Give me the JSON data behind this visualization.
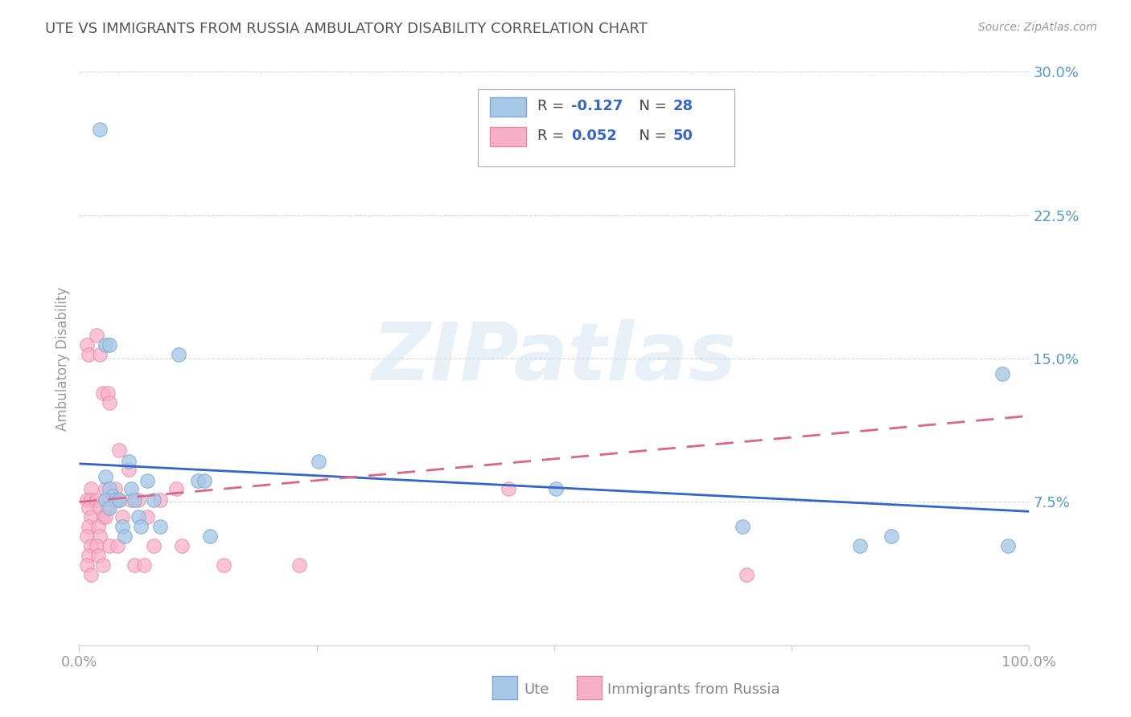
{
  "title": "UTE VS IMMIGRANTS FROM RUSSIA AMBULATORY DISABILITY CORRELATION CHART",
  "source": "Source: ZipAtlas.com",
  "ylabel": "Ambulatory Disability",
  "watermark": "ZIPatlas",
  "xlim": [
    0,
    1.0
  ],
  "ylim": [
    0,
    0.3
  ],
  "yticks": [
    0.075,
    0.15,
    0.225,
    0.3
  ],
  "ytick_labels": [
    "7.5%",
    "15.0%",
    "22.5%",
    "30.0%"
  ],
  "ute_color": "#a8c8e8",
  "russia_color": "#f8b0c8",
  "ute_edge_color": "#7aaad0",
  "russia_edge_color": "#e888a8",
  "ute_line_color": "#3366cc",
  "russia_line_color": "#dd6688",
  "tick_color": "#5599cc",
  "axis_label_color": "#999999",
  "title_color": "#555555",
  "source_color": "#999999",
  "grid_color": "#cccccc",
  "legend_text_color": "#444444",
  "legend_R_color": "#3366cc",
  "bottom_legend_text_color": "#888888",
  "ute_points": [
    [
      0.022,
      0.27
    ],
    [
      0.028,
      0.157
    ],
    [
      0.032,
      0.157
    ],
    [
      0.028,
      0.088
    ],
    [
      0.032,
      0.082
    ],
    [
      0.035,
      0.078
    ],
    [
      0.028,
      0.076
    ],
    [
      0.038,
      0.076
    ],
    [
      0.032,
      0.072
    ],
    [
      0.042,
      0.076
    ],
    [
      0.045,
      0.062
    ],
    [
      0.048,
      0.057
    ],
    [
      0.052,
      0.096
    ],
    [
      0.055,
      0.082
    ],
    [
      0.058,
      0.076
    ],
    [
      0.062,
      0.067
    ],
    [
      0.065,
      0.062
    ],
    [
      0.072,
      0.086
    ],
    [
      0.078,
      0.076
    ],
    [
      0.085,
      0.062
    ],
    [
      0.105,
      0.152
    ],
    [
      0.125,
      0.086
    ],
    [
      0.132,
      0.086
    ],
    [
      0.138,
      0.057
    ],
    [
      0.252,
      0.096
    ],
    [
      0.502,
      0.082
    ],
    [
      0.698,
      0.062
    ],
    [
      0.822,
      0.052
    ],
    [
      0.855,
      0.057
    ],
    [
      0.972,
      0.142
    ],
    [
      0.978,
      0.052
    ]
  ],
  "russia_points": [
    [
      0.008,
      0.157
    ],
    [
      0.01,
      0.152
    ],
    [
      0.012,
      0.082
    ],
    [
      0.008,
      0.076
    ],
    [
      0.012,
      0.076
    ],
    [
      0.01,
      0.072
    ],
    [
      0.012,
      0.067
    ],
    [
      0.01,
      0.062
    ],
    [
      0.008,
      0.057
    ],
    [
      0.012,
      0.052
    ],
    [
      0.01,
      0.047
    ],
    [
      0.008,
      0.042
    ],
    [
      0.012,
      0.037
    ],
    [
      0.018,
      0.162
    ],
    [
      0.022,
      0.152
    ],
    [
      0.025,
      0.132
    ],
    [
      0.018,
      0.076
    ],
    [
      0.022,
      0.072
    ],
    [
      0.025,
      0.067
    ],
    [
      0.02,
      0.062
    ],
    [
      0.022,
      0.057
    ],
    [
      0.018,
      0.052
    ],
    [
      0.02,
      0.047
    ],
    [
      0.025,
      0.042
    ],
    [
      0.03,
      0.132
    ],
    [
      0.032,
      0.127
    ],
    [
      0.028,
      0.082
    ],
    [
      0.032,
      0.076
    ],
    [
      0.03,
      0.072
    ],
    [
      0.028,
      0.067
    ],
    [
      0.032,
      0.052
    ],
    [
      0.042,
      0.102
    ],
    [
      0.038,
      0.082
    ],
    [
      0.042,
      0.076
    ],
    [
      0.045,
      0.067
    ],
    [
      0.04,
      0.052
    ],
    [
      0.052,
      0.092
    ],
    [
      0.055,
      0.076
    ],
    [
      0.058,
      0.042
    ],
    [
      0.062,
      0.076
    ],
    [
      0.068,
      0.042
    ],
    [
      0.072,
      0.067
    ],
    [
      0.078,
      0.052
    ],
    [
      0.085,
      0.076
    ],
    [
      0.102,
      0.082
    ],
    [
      0.108,
      0.052
    ],
    [
      0.152,
      0.042
    ],
    [
      0.232,
      0.042
    ],
    [
      0.452,
      0.082
    ],
    [
      0.702,
      0.037
    ]
  ],
  "background_color": "#ffffff"
}
